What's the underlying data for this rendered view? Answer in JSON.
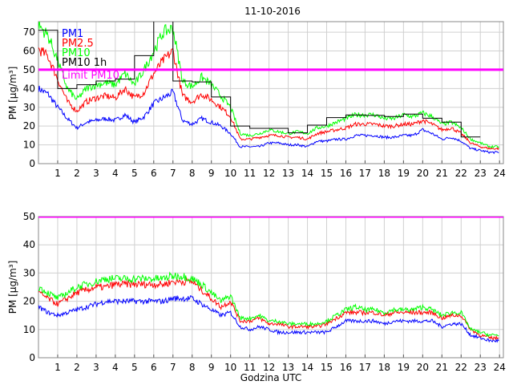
{
  "chart_data": [
    {
      "type": "line",
      "title": "11-10-2016",
      "xlabel": "",
      "ylabel": "PM [µg/m³]",
      "xlim": [
        0,
        24.2
      ],
      "ylim": [
        0,
        75.6
      ],
      "xticks": [
        "1",
        "2",
        "3",
        "4",
        "5",
        "6",
        "7",
        "8",
        "9",
        "10",
        "11",
        "12",
        "13",
        "14",
        "15",
        "16",
        "17",
        "18",
        "19",
        "20",
        "21",
        "22",
        "23",
        "24"
      ],
      "yticks": [
        "0",
        "10",
        "20",
        "30",
        "40",
        "50",
        "60",
        "70"
      ],
      "ytick_values": [
        0,
        10,
        20,
        30,
        40,
        50,
        60,
        70
      ],
      "grid": true,
      "legend_position": "top-left",
      "x_step": 0.5,
      "series": [
        {
          "name": "PM1",
          "color": "#0000ff",
          "values": [
            40,
            37,
            30,
            24,
            19,
            22,
            23,
            24,
            23,
            26,
            22,
            25,
            32,
            35,
            38,
            23,
            21,
            24,
            22,
            20,
            16,
            9,
            9,
            9,
            11,
            11,
            10,
            10,
            9,
            12,
            12,
            13,
            13,
            15,
            15,
            15,
            14,
            14,
            15,
            15,
            18,
            16,
            13,
            14,
            12,
            8,
            7,
            6
          ]
        },
        {
          "name": "PM2.5",
          "color": "#ff0000",
          "values": [
            61,
            57,
            45,
            33,
            28,
            33,
            35,
            36,
            35,
            40,
            35,
            38,
            48,
            55,
            60,
            36,
            33,
            37,
            34,
            30,
            25,
            13,
            13,
            14,
            15,
            15,
            14,
            14,
            13,
            16,
            17,
            18,
            19,
            21,
            21,
            21,
            20,
            20,
            21,
            21,
            23,
            21,
            18,
            19,
            16,
            11,
            9,
            8
          ]
        },
        {
          "name": "PM10",
          "color": "#00ff00",
          "values": [
            74,
            68,
            55,
            40,
            34,
            40,
            42,
            43,
            42,
            48,
            42,
            50,
            60,
            70,
            72,
            44,
            41,
            46,
            42,
            36,
            30,
            16,
            15,
            16,
            18,
            17,
            16,
            17,
            16,
            19,
            20,
            22,
            24,
            26,
            26,
            26,
            24,
            24,
            26,
            25,
            27,
            25,
            21,
            22,
            19,
            13,
            11,
            9
          ]
        },
        {
          "name": "PM10 1h",
          "color": "#000000",
          "step": true,
          "values": [
            71,
            40,
            42,
            44,
            45,
            57.5,
            80,
            44,
            43.5,
            35.5,
            20,
            18.8,
            18.8,
            16.4,
            20.5,
            24.5,
            25.9,
            25.7,
            25.1,
            26.4,
            24.2,
            22.1,
            14.2
          ]
        },
        {
          "name": "Limit PM10",
          "color": "#ff00ff",
          "constant": 50
        }
      ]
    },
    {
      "type": "line",
      "title": "",
      "xlabel": "Godzina UTC",
      "ylabel": "PM [µg/m³]",
      "xlim": [
        0,
        24.2
      ],
      "ylim": [
        0,
        50
      ],
      "xticks": [
        "1",
        "2",
        "3",
        "4",
        "5",
        "6",
        "7",
        "8",
        "9",
        "10",
        "11",
        "12",
        "13",
        "14",
        "15",
        "16",
        "17",
        "18",
        "19",
        "20",
        "21",
        "22",
        "23",
        "24"
      ],
      "yticks": [
        "0",
        "10",
        "20",
        "30",
        "40",
        "50"
      ],
      "ytick_values": [
        0,
        10,
        20,
        30,
        40,
        50
      ],
      "grid": true,
      "x_step": 0.5,
      "series": [
        {
          "name": "PM1",
          "color": "#0000ff",
          "values": [
            18,
            16,
            15,
            16,
            17,
            18,
            19,
            20,
            20,
            20,
            20,
            20,
            20,
            20,
            21,
            21,
            21,
            19,
            17,
            15,
            16,
            11,
            10,
            11,
            10,
            9,
            9,
            9,
            9,
            9,
            9,
            11,
            13,
            13,
            13,
            13,
            12,
            13,
            13,
            13,
            13,
            13,
            11,
            12,
            12,
            8,
            7,
            6
          ]
        },
        {
          "name": "PM2.5",
          "color": "#ff0000",
          "values": [
            23,
            21,
            19,
            21,
            23,
            24,
            25,
            25,
            26,
            26,
            26,
            26,
            26,
            26,
            27,
            27,
            27,
            24,
            21,
            18,
            20,
            13,
            13,
            14,
            12,
            12,
            11,
            11,
            11,
            11,
            12,
            14,
            16,
            16,
            16,
            16,
            15,
            16,
            16,
            16,
            16,
            16,
            14,
            15,
            15,
            10,
            8,
            7
          ]
        },
        {
          "name": "PM10",
          "color": "#00ff00",
          "values": [
            25,
            23,
            21,
            23,
            25,
            26,
            27,
            28,
            28,
            28,
            28,
            28,
            28,
            28,
            29,
            29,
            28,
            26,
            23,
            20,
            22,
            14,
            14,
            15,
            13,
            13,
            12,
            12,
            12,
            12,
            13,
            15,
            17,
            18,
            17,
            17,
            16,
            17,
            17,
            17,
            18,
            17,
            15,
            16,
            16,
            10,
            9,
            8
          ]
        },
        {
          "name": "Limit PM10",
          "color": "#ff00ff",
          "constant": 50
        }
      ]
    }
  ]
}
